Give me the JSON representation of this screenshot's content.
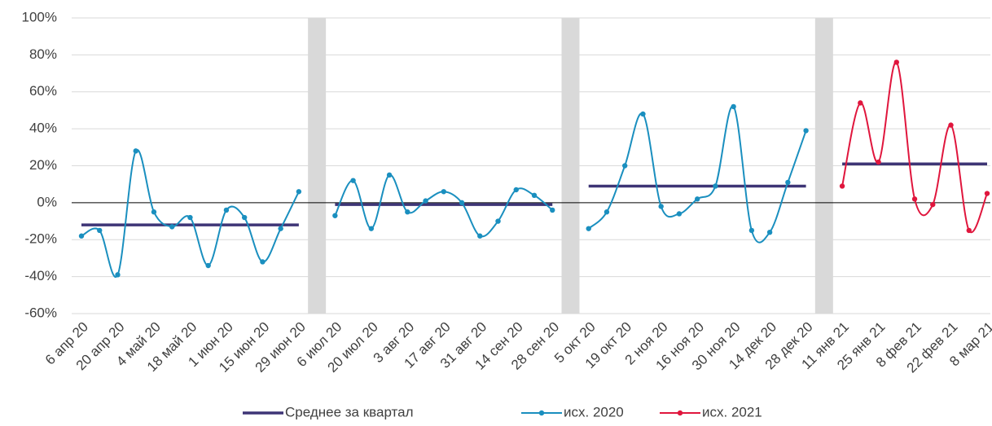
{
  "chart_data": {
    "type": "line",
    "categories": [
      "6 апр 20",
      null,
      "20 апр 20",
      null,
      "4 май 20",
      null,
      "18 май 20",
      null,
      "1 июн 20",
      null,
      "15 июн 20",
      null,
      "29 июн 20",
      null,
      "6 июл 20",
      null,
      "20 июл 20",
      null,
      "3 авг 20",
      null,
      "17 авг 20",
      null,
      "31 авг 20",
      null,
      "14 сен 20",
      null,
      "28 сен 20",
      null,
      "5 окт 20",
      null,
      "19 окт 20",
      null,
      "2 ноя 20",
      null,
      "16 ноя 20",
      null,
      "30 ноя 20",
      null,
      "14 дек 20",
      null,
      "28 дек 20",
      null,
      "11 янв 21",
      null,
      "25 янв 21",
      null,
      "8 фев 21",
      null,
      "22 фев 21",
      null,
      "8 мар 21"
    ],
    "series": [
      {
        "name": "Среднее за квартал",
        "color": "#3e3576",
        "style": "step",
        "values": [
          -12,
          -12,
          -12,
          -12,
          -12,
          -12,
          -12,
          -12,
          -12,
          -12,
          -12,
          -12,
          -12,
          null,
          -1,
          -1,
          -1,
          -1,
          -1,
          -1,
          -1,
          -1,
          -1,
          -1,
          -1,
          -1,
          -1,
          null,
          9,
          9,
          9,
          9,
          9,
          9,
          9,
          9,
          9,
          9,
          9,
          9,
          9,
          null,
          21,
          21,
          21,
          21,
          21,
          21,
          21,
          21,
          21
        ]
      },
      {
        "name": "исх. 2020",
        "color": "#1a8fbf",
        "style": "smooth",
        "values": [
          -18,
          -15,
          -39,
          28,
          -5,
          -13,
          -8,
          -34,
          -4,
          -8,
          -32,
          -14,
          6,
          null,
          -7,
          12,
          -14,
          15,
          -5,
          1,
          6,
          0,
          -18,
          -10,
          7,
          4,
          -4,
          null,
          -14,
          -5,
          20,
          48,
          -2,
          -6,
          2,
          9,
          52,
          -15,
          -16,
          11,
          39,
          null,
          null,
          null,
          null,
          null,
          null,
          null,
          null,
          null,
          null
        ]
      },
      {
        "name": "исх. 2021",
        "color": "#e0163d",
        "style": "smooth",
        "values": [
          null,
          null,
          null,
          null,
          null,
          null,
          null,
          null,
          null,
          null,
          null,
          null,
          null,
          null,
          null,
          null,
          null,
          null,
          null,
          null,
          null,
          null,
          null,
          null,
          null,
          null,
          null,
          null,
          null,
          null,
          null,
          null,
          null,
          null,
          null,
          null,
          null,
          null,
          null,
          null,
          null,
          null,
          9,
          54,
          22,
          76,
          2,
          -1,
          42,
          -15,
          5
        ]
      }
    ],
    "ylim": [
      -60,
      100
    ],
    "yticks": [
      {
        "value": -60,
        "label": "-60%"
      },
      {
        "value": -40,
        "label": "-40%"
      },
      {
        "value": -20,
        "label": "-20%"
      },
      {
        "value": 0,
        "label": "0%"
      },
      {
        "value": 20,
        "label": "20%"
      },
      {
        "value": 40,
        "label": "40%"
      },
      {
        "value": 60,
        "label": "60%"
      },
      {
        "value": 80,
        "label": "80%"
      },
      {
        "value": 100,
        "label": "100%"
      }
    ],
    "grid": true,
    "legend": "bottom"
  }
}
